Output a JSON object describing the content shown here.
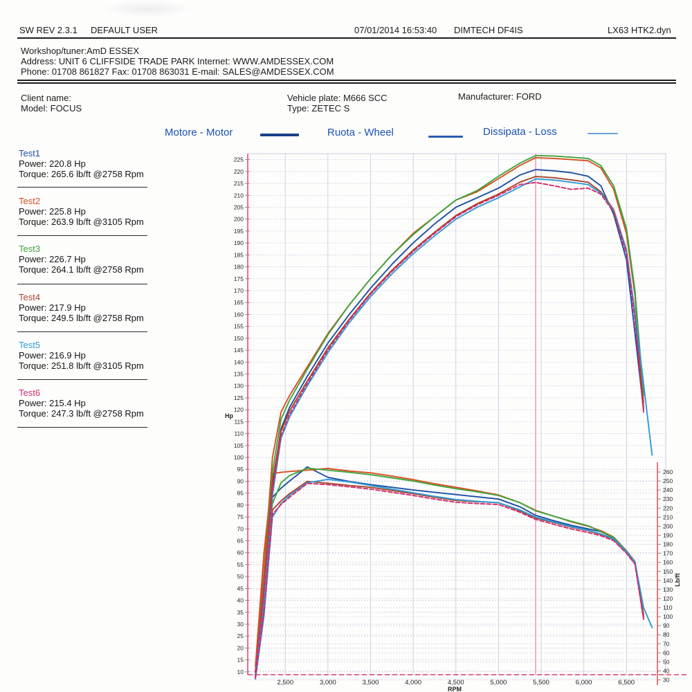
{
  "header": {
    "sw_rev": "SW REV 2.3.1",
    "user": "DEFAULT USER",
    "datetime": "07/01/2014 16:53:40",
    "device": "DIMTECH DF4IS",
    "filename": "LX63 HTK2.dyn"
  },
  "workshop": {
    "tuner": "Workshop/tuner:AmD ESSEX",
    "address": "Address: UNIT 6 CLIFFSIDE TRADE PARK Internet: WWW.AMDESSEX.COM",
    "phone": "Phone: 01708 861827 Fax: 01708 863031 E-mail: SALES@AMDESSEX.COM"
  },
  "client": {
    "name_label": "Client name:",
    "model": "Model: FOCUS",
    "plate": "Vehicle plate: M666 SCC",
    "type": "Type: ZETEC S",
    "manufacturer": "Manufacturer: FORD"
  },
  "legend": {
    "items": [
      {
        "label": "Motore - Motor",
        "line_color": "#1a3f87"
      },
      {
        "label": "Ruota - Wheel",
        "line_color": "#2a5cb0"
      },
      {
        "label": "Dissipata - Loss",
        "line_color": "#6b9fd8"
      }
    ]
  },
  "tests": [
    {
      "name": "Test1",
      "color": "#1d4fa1",
      "power_label": "Power: 220.8 Hp",
      "torque_label": "Torque: 265.6 lb/ft @2758 Rpm"
    },
    {
      "name": "Test2",
      "color": "#d94e1f",
      "power_label": "Power: 225.8 Hp",
      "torque_label": "Torque: 263.9 lb/ft @3105 Rpm"
    },
    {
      "name": "Test3",
      "color": "#3fa33c",
      "power_label": "Power: 226.7 Hp",
      "torque_label": "Torque: 264.1 lb/ft @2758 Rpm"
    },
    {
      "name": "Test4",
      "color": "#a8432c",
      "power_label": "Power: 217.9 Hp",
      "torque_label": "Torque: 249.5 lb/ft @2758 Rpm"
    },
    {
      "name": "Test5",
      "color": "#2e9bd6",
      "power_label": "Power: 216.9 Hp",
      "torque_label": "Torque: 251.8 lb/ft @3105 Rpm"
    },
    {
      "name": "Test6",
      "color": "#d22b6e",
      "power_label": "Power: 215.4 Hp",
      "torque_label": "Torque: 247.3 lb/ft @2758 Rpm"
    }
  ],
  "chart_data": {
    "type": "line",
    "xlabel": "RPM",
    "ylabel_left": "Hp",
    "ylabel_right": "Lb/ft",
    "x_range": [
      2060,
      6960
    ],
    "x_ticks": {
      "start": 2500,
      "end": 6500,
      "step": 500
    },
    "y_left_range": [
      8.8,
      227.5
    ],
    "y_left_ticks": {
      "start": 10,
      "end": 225,
      "step": 5
    },
    "y_right_ticks": {
      "start": 30,
      "end": 260,
      "step": 10
    },
    "y_right_align": {
      "lbft": [
        30,
        260
      ],
      "hp_equiv": [
        6.6,
        93.9
      ]
    },
    "grid": true,
    "cursor_rpm": 5435,
    "axis_colors": {
      "left": "#ef5f7e",
      "bottom": "#d63e62",
      "right": "#cf4646",
      "cursor": "#ef8ba0"
    },
    "rpm": [
      2150,
      2250,
      2350,
      2450,
      2550,
      2758,
      3000,
      3250,
      3500,
      3750,
      4000,
      4250,
      4500,
      4750,
      5000,
      5250,
      5435,
      5650,
      5850,
      6050,
      6200,
      6350,
      6500,
      6600,
      6700,
      6800
    ],
    "series": [
      {
        "name": "Test1",
        "color": "#1d4fa1",
        "dash": false,
        "peak_hp": 220.8,
        "peak_lbft": 265.6,
        "peak_lbft_rpm": 2758,
        "hp": [
          10,
          42,
          88,
          112,
          121,
          134,
          148,
          160,
          171,
          181,
          190,
          198,
          205,
          209,
          213,
          218.5,
          220.8,
          220.3,
          219.5,
          218,
          214,
          202,
          183,
          152,
          120,
          null
        ],
        "lbft": [
          35,
          120,
          232,
          242,
          250,
          265.6,
          254,
          249.5,
          246,
          243,
          240,
          237.5,
          235,
          232.5,
          230,
          221.5,
          212,
          206,
          201,
          197,
          194,
          187,
          172,
          160,
          101,
          null
        ]
      },
      {
        "name": "Test2",
        "color": "#d94e1f",
        "dash": false,
        "peak_hp": 225.8,
        "peak_lbft": 263.9,
        "peak_lbft_rpm": 3105,
        "hp": [
          10,
          52,
          100,
          119,
          126,
          138,
          152,
          164,
          175,
          185,
          194,
          201,
          208,
          211.5,
          217,
          222.5,
          225.8,
          225.5,
          225,
          224.5,
          221.5,
          212.5,
          194,
          168,
          123,
          null
        ],
        "lbft": [
          45,
          170,
          258,
          259.5,
          260.5,
          262,
          263.9,
          261,
          259,
          255.5,
          251.5,
          247,
          243,
          239,
          234.5,
          226,
          217.5,
          211,
          205,
          200,
          195,
          188,
          173,
          161,
          102,
          null
        ]
      },
      {
        "name": "Test3",
        "color": "#3fa33c",
        "dash": false,
        "peak_hp": 226.7,
        "peak_lbft": 264.1,
        "peak_lbft_rpm": 2758,
        "hp": [
          10,
          47,
          94,
          116,
          124,
          137,
          151.5,
          164,
          175,
          185,
          193.5,
          201,
          208,
          212,
          218,
          223.5,
          226.7,
          226.5,
          226,
          225.5,
          222.5,
          214,
          196,
          170,
          126,
          null
        ],
        "lbft": [
          38,
          130,
          225,
          248,
          256,
          264.1,
          262,
          259.5,
          257,
          253.5,
          250,
          245.5,
          241.5,
          238,
          234,
          226,
          217,
          211,
          205.5,
          200.5,
          194,
          187.5,
          172.5,
          160,
          100,
          null
        ]
      },
      {
        "name": "Test4",
        "color": "#a8432c",
        "dash": false,
        "peak_hp": 217.9,
        "peak_lbft": 249.5,
        "peak_lbft_rpm": 2758,
        "hp": [
          10,
          45,
          90,
          111,
          119.5,
          132,
          146,
          158,
          169,
          178.5,
          187,
          194.5,
          201.5,
          206.5,
          210.5,
          215.5,
          217.9,
          217.4,
          216.5,
          215.5,
          211.5,
          204,
          187,
          160,
          121,
          null
        ],
        "lbft": [
          33,
          110,
          218,
          228,
          236,
          249.5,
          247.5,
          245,
          243,
          239.5,
          236,
          232,
          228.5,
          227,
          226,
          217,
          209,
          204,
          199,
          195,
          191,
          185.5,
          171,
          159,
          99,
          null
        ]
      },
      {
        "name": "Test5",
        "color": "#2e9bd6",
        "dash": false,
        "peak_hp": 216.9,
        "peak_lbft": 251.8,
        "peak_lbft_rpm": 3105,
        "hp": [
          10,
          40,
          84,
          108,
          117,
          130,
          144,
          156.5,
          167.5,
          177,
          185.5,
          193,
          200,
          205,
          209,
          213.5,
          216.9,
          216.4,
          215.5,
          214.5,
          211,
          203.5,
          186.5,
          161,
          131,
          101
        ],
        "lbft": [
          31,
          100,
          210,
          225,
          234,
          248,
          251.8,
          249,
          245,
          241,
          237,
          233,
          229.5,
          227.5,
          226,
          218,
          210,
          204.5,
          199.5,
          195.5,
          191.5,
          186,
          172,
          160.5,
          110,
          88
        ]
      },
      {
        "name": "Test6",
        "color": "#d22b6e",
        "dash": true,
        "peak_hp": 215.4,
        "peak_lbft": 247.3,
        "peak_lbft_rpm": 2758,
        "hp": [
          10,
          43,
          86,
          109,
          118,
          131,
          145,
          157.5,
          168.5,
          178,
          186.5,
          194,
          201,
          206,
          210,
          214.5,
          215.4,
          214,
          212.5,
          213,
          210.5,
          203,
          185.5,
          158,
          119,
          null
        ],
        "lbft": [
          32,
          105,
          213,
          224,
          232,
          247.3,
          246,
          243.5,
          241,
          237.5,
          234,
          230,
          226.5,
          225,
          224,
          215.5,
          207.5,
          202,
          197,
          193,
          189.5,
          184,
          170,
          158,
          97,
          null
        ]
      }
    ]
  }
}
